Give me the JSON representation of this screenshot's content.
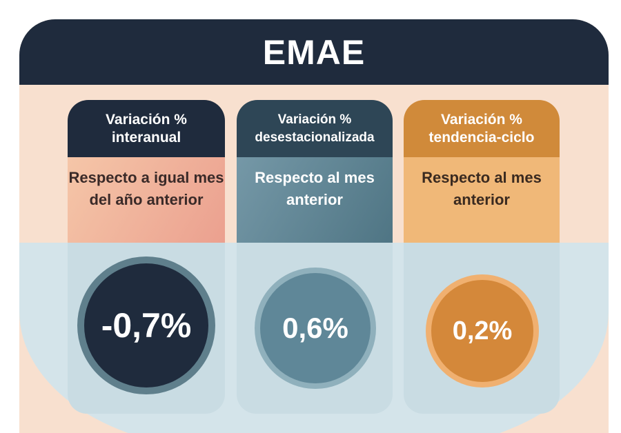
{
  "title": "EMAE",
  "columns": [
    {
      "header": "Variación %\ninteranual",
      "subtitle": "Respecto a igual mes del año anterior",
      "value": "-0,7%",
      "color": "#1f2b3d"
    },
    {
      "header": "Variación %\ndesestacionalizada",
      "subtitle": "Respecto al mes anterior",
      "value": "0,6%",
      "color": "#5f8798"
    },
    {
      "header": "Variación %\ntendencia-ciclo",
      "subtitle": "Respecto al mes anterior",
      "value": "0,2%",
      "color": "#d08a3a"
    }
  ]
}
